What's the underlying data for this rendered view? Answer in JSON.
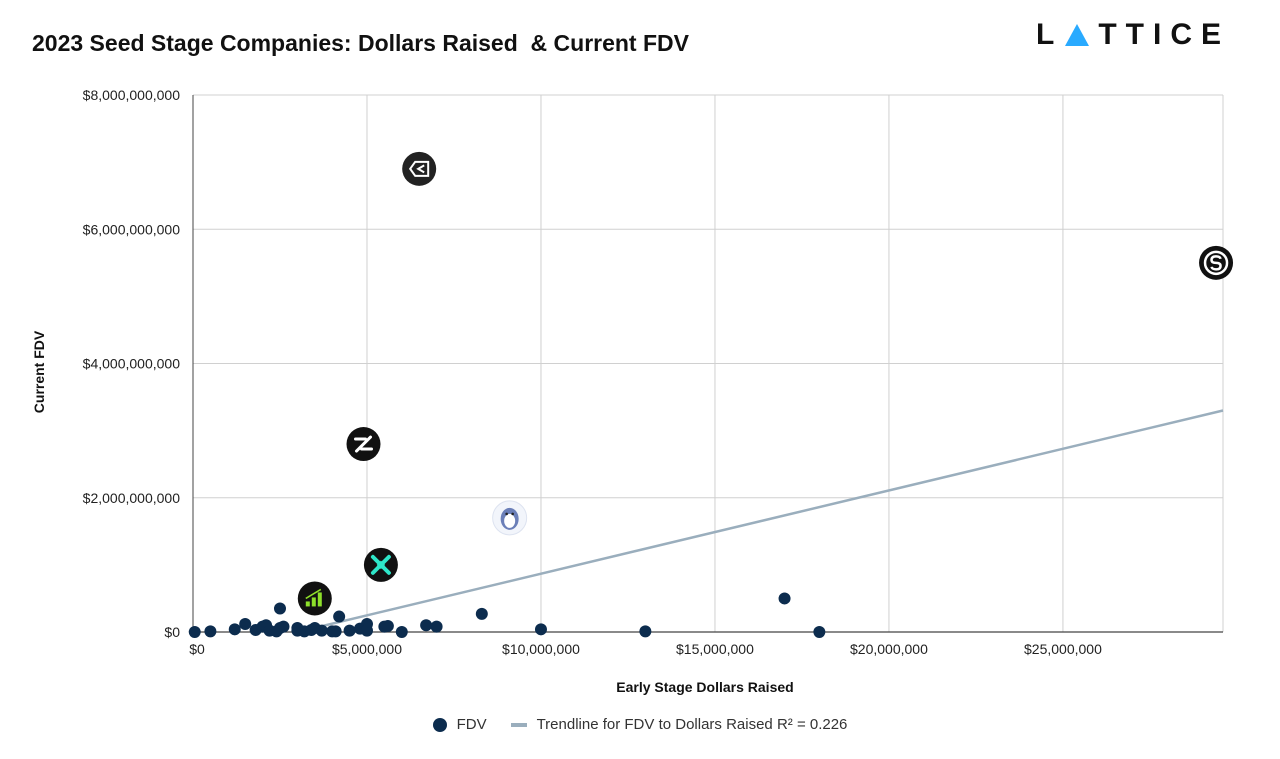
{
  "header": {
    "title": "2023 Seed Stage Companies: Dollars Raised  & Current FDV",
    "brand_left": "L",
    "brand_right": "TTICE"
  },
  "colors": {
    "point": "#0c2c4e",
    "trendline": "#9aaebd",
    "grid": "#d0d0d0",
    "axis": "#444444"
  },
  "chart_data": {
    "type": "scatter",
    "xlabel": "Early Stage Dollars Raised",
    "ylabel": "Current FDV",
    "xlim": [
      0,
      29600000
    ],
    "ylim": [
      0,
      8000000000
    ],
    "x_ticks": [
      0,
      5000000,
      10000000,
      15000000,
      20000000,
      25000000
    ],
    "x_tick_labels": [
      "$0",
      "$5,000,000",
      "$10,000,000",
      "$15,000,000",
      "$20,000,000",
      "$25,000,000"
    ],
    "y_ticks": [
      0,
      2000000000,
      4000000000,
      6000000000,
      8000000000
    ],
    "y_tick_labels": [
      "$0",
      "$2,000,000,000",
      "$4,000,000,000",
      "$6,000,000,000",
      "$8,000,000,000"
    ],
    "grid": true,
    "legend_position": "bottom",
    "series": [
      {
        "name": "FDV",
        "points": [
          [
            50000,
            0
          ],
          [
            500000,
            10000000
          ],
          [
            1200000,
            40000000
          ],
          [
            1500000,
            120000000
          ],
          [
            1800000,
            30000000
          ],
          [
            2000000,
            80000000
          ],
          [
            2100000,
            100000000
          ],
          [
            2200000,
            20000000
          ],
          [
            2400000,
            10000000
          ],
          [
            2500000,
            350000000
          ],
          [
            2500000,
            60000000
          ],
          [
            2600000,
            80000000
          ],
          [
            3000000,
            60000000
          ],
          [
            3000000,
            20000000
          ],
          [
            3200000,
            10000000
          ],
          [
            3400000,
            30000000
          ],
          [
            3500000,
            60000000
          ],
          [
            3700000,
            20000000
          ],
          [
            4000000,
            10000000
          ],
          [
            4100000,
            10000000
          ],
          [
            4200000,
            230000000
          ],
          [
            4500000,
            20000000
          ],
          [
            4800000,
            50000000
          ],
          [
            5000000,
            120000000
          ],
          [
            5000000,
            20000000
          ],
          [
            5500000,
            80000000
          ],
          [
            5600000,
            90000000
          ],
          [
            6000000,
            0
          ],
          [
            6700000,
            100000000
          ],
          [
            7000000,
            80000000
          ],
          [
            8300000,
            270000000
          ],
          [
            10000000,
            40000000
          ],
          [
            13000000,
            10000000
          ],
          [
            17000000,
            500000000
          ],
          [
            18000000,
            0
          ]
        ],
        "logo_points": [
          {
            "x": 6500000,
            "y": 6900000000,
            "icon": "sigma-logo-icon",
            "bg": "#222222",
            "fg": "#ffffff"
          },
          {
            "x": 29400000,
            "y": 5500000000,
            "icon": "s-coin-logo-icon",
            "bg": "#111111",
            "fg": "#ffffff"
          },
          {
            "x": 4900000,
            "y": 2800000000,
            "icon": "z-logo-icon",
            "bg": "#111111",
            "fg": "#ffffff"
          },
          {
            "x": 9100000,
            "y": 1700000000,
            "icon": "penguin-logo-icon",
            "bg": "#f2f5fb",
            "fg": "#6b7fb8"
          },
          {
            "x": 5400000,
            "y": 1000000000,
            "icon": "x-cross-logo-icon",
            "bg": "#111111",
            "fg": "#2ee6c9"
          },
          {
            "x": 3500000,
            "y": 500000000,
            "icon": "bars-logo-icon",
            "bg": "#111111",
            "fg": "#8ee02a"
          }
        ]
      },
      {
        "name": "Trendline for FDV to Dollars Raised R² = 0.226",
        "type": "line",
        "points": [
          [
            3000000,
            0
          ],
          [
            29600000,
            3300000000
          ]
        ]
      }
    ]
  }
}
